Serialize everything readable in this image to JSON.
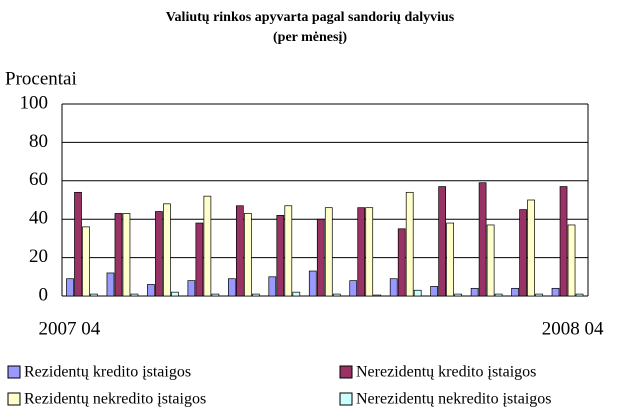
{
  "chart_data": {
    "type": "bar",
    "title": "Valiutų rinkos apyvarta pagal sandorių dalyvius",
    "subtitle": "(per mėnesį)",
    "y_label": "Procentai",
    "categories": [
      "2007 04",
      null,
      null,
      null,
      null,
      null,
      null,
      null,
      null,
      null,
      null,
      null,
      "2008 04"
    ],
    "series": [
      {
        "name": "Rezidentų kredito įstaigos",
        "color": "#9999ff",
        "values": [
          9,
          12,
          6,
          8,
          9,
          10,
          13,
          8,
          9,
          5,
          4,
          4,
          4
        ]
      },
      {
        "name": "Nerezidentų kredito įstaigos",
        "color": "#993366",
        "values": [
          54,
          43,
          44,
          38,
          47,
          42,
          40,
          46,
          35,
          57,
          59,
          45,
          57
        ]
      },
      {
        "name": "Rezidentų nekredito įstaigos",
        "color": "#ffffcc",
        "values": [
          36,
          43,
          48,
          52,
          43,
          47,
          46,
          46,
          54,
          38,
          37,
          50,
          37
        ]
      },
      {
        "name": "Nerezidentų nekredito įstaigos",
        "color": "#ccffff",
        "values": [
          1,
          1,
          2,
          1,
          1,
          2,
          1,
          0.5,
          3,
          1,
          1,
          1,
          1
        ]
      }
    ],
    "ylim": [
      0,
      100
    ],
    "yticks": [
      0,
      20,
      40,
      60,
      80,
      100
    ],
    "grid": true,
    "legend": "bottom"
  }
}
